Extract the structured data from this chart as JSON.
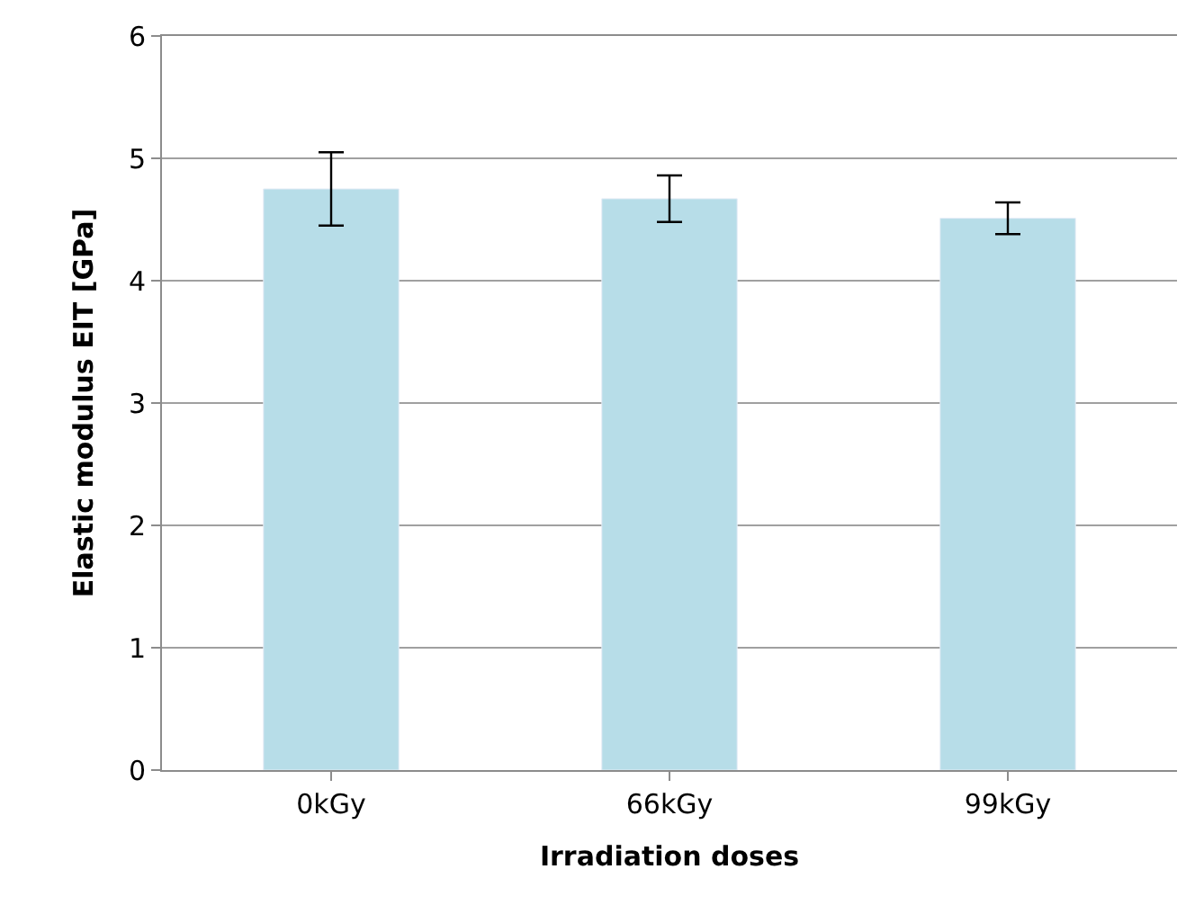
{
  "chart_data": {
    "type": "bar",
    "xlabel": "Irradiation doses",
    "ylabel": "Elastic modulus EIT [GPa]",
    "categories": [
      "0kGy",
      "66kGy",
      "99kGy"
    ],
    "values": [
      4.75,
      4.67,
      4.51
    ],
    "errors": [
      0.3,
      0.19,
      0.13
    ],
    "color": "#b7dde8",
    "ylim": [
      0,
      6
    ],
    "yticks": [
      0,
      1,
      2,
      3,
      4,
      5,
      6
    ],
    "grid": "y"
  }
}
